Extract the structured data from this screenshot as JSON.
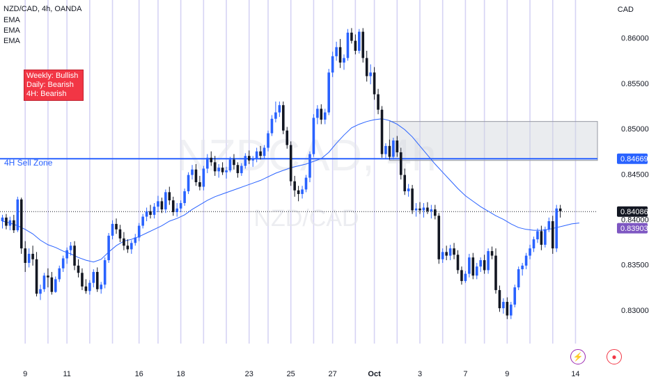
{
  "header": {
    "symbol_line": "NZD/CAD, 4h, OANDA",
    "indicators": [
      "EMA",
      "EMA",
      "EMA"
    ]
  },
  "currency_label": "CAD",
  "bias_box": {
    "lines": [
      "Weekly: Bullish",
      "Daily: Bearish",
      "4H: Bearish"
    ],
    "color": "#f23645"
  },
  "zone_label": "4H Sell Zone",
  "watermark": {
    "main": "NZDCAD, 4h",
    "sub": "NZD/CAD"
  },
  "icons": [
    "flash-icon",
    "tradingview-logo-icon"
  ],
  "colors": {
    "up": "#2962ff",
    "down": "#131722",
    "ema": "#2962ff",
    "zone_fill": "#d1d4dc",
    "session_line": "#c8c4f0"
  },
  "chart_data": {
    "type": "candlestick",
    "symbol": "NZD/CAD",
    "timeframe": "4h",
    "y_axis": {
      "ticks": [
        0.83,
        0.835,
        0.84,
        0.845,
        0.85,
        0.855,
        0.86
      ],
      "tick_labels": [
        "0.83000",
        "0.83500",
        "0.84000",
        "0.84500",
        "0.85000",
        "0.85500",
        "0.86000"
      ],
      "range": [
        0.8263,
        0.8642
      ]
    },
    "x_axis": {
      "labels": [
        {
          "label": "9",
          "idx": 6
        },
        {
          "label": "11",
          "idx": 17
        },
        {
          "label": "16",
          "idx": 36
        },
        {
          "label": "18",
          "idx": 47
        },
        {
          "label": "23",
          "idx": 65
        },
        {
          "label": "25",
          "idx": 76
        },
        {
          "label": "27",
          "idx": 87
        },
        {
          "label": "Oct",
          "idx": 98,
          "bold": true
        },
        {
          "label": "3",
          "idx": 110
        },
        {
          "label": "7",
          "idx": 122
        },
        {
          "label": "9",
          "idx": 133
        },
        {
          "label": "14",
          "idx": 151
        }
      ],
      "session_lines": [
        6,
        12,
        17,
        23,
        29,
        36,
        41,
        47,
        53,
        59,
        65,
        70,
        76,
        82,
        87,
        93,
        98,
        104,
        110,
        116,
        122,
        127,
        133,
        139,
        145,
        151
      ]
    },
    "price_labels": [
      {
        "value": 0.84669,
        "text": "0.84669",
        "color": "#2962ff"
      },
      {
        "value": 0.84086,
        "text": "0.84086",
        "color": "#131722"
      },
      {
        "value": 0.83903,
        "text": "0.83903",
        "color": "#7e57c2"
      }
    ],
    "sell_zone": {
      "top": 0.8508,
      "bottom": 0.8465,
      "from_idx": 102
    },
    "zone_line": 0.84669,
    "current_price": 0.84086,
    "candles": [
      [
        0.8398,
        0.8405,
        0.839,
        0.8402
      ],
      [
        0.8402,
        0.8406,
        0.8389,
        0.8393
      ],
      [
        0.8393,
        0.8403,
        0.8388,
        0.8399
      ],
      [
        0.8399,
        0.8405,
        0.8385,
        0.8388
      ],
      [
        0.8388,
        0.8425,
        0.8386,
        0.8422
      ],
      [
        0.8422,
        0.8424,
        0.8362,
        0.8368
      ],
      [
        0.8368,
        0.8376,
        0.8342,
        0.8352
      ],
      [
        0.8352,
        0.8368,
        0.8347,
        0.8362
      ],
      [
        0.8362,
        0.8371,
        0.8349,
        0.8356
      ],
      [
        0.8356,
        0.8364,
        0.8315,
        0.8318
      ],
      [
        0.8318,
        0.8328,
        0.8311,
        0.8323
      ],
      [
        0.8323,
        0.8341,
        0.832,
        0.8338
      ],
      [
        0.8338,
        0.8346,
        0.8325,
        0.8336
      ],
      [
        0.8336,
        0.8342,
        0.8317,
        0.832
      ],
      [
        0.832,
        0.8337,
        0.8319,
        0.8334
      ],
      [
        0.8334,
        0.8349,
        0.8331,
        0.8346
      ],
      [
        0.8346,
        0.836,
        0.8342,
        0.8357
      ],
      [
        0.8357,
        0.8369,
        0.8351,
        0.8366
      ],
      [
        0.8366,
        0.8375,
        0.836,
        0.8371
      ],
      [
        0.8371,
        0.8376,
        0.8344,
        0.8349
      ],
      [
        0.8349,
        0.8356,
        0.8336,
        0.8341
      ],
      [
        0.8341,
        0.8346,
        0.8322,
        0.8326
      ],
      [
        0.8326,
        0.8334,
        0.8318,
        0.8321
      ],
      [
        0.8321,
        0.8333,
        0.8317,
        0.833
      ],
      [
        0.833,
        0.8345,
        0.8325,
        0.8342
      ],
      [
        0.8342,
        0.8347,
        0.832,
        0.8323
      ],
      [
        0.8323,
        0.8331,
        0.8318,
        0.8328
      ],
      [
        0.8328,
        0.8358,
        0.8324,
        0.8355
      ],
      [
        0.8355,
        0.8385,
        0.8352,
        0.8382
      ],
      [
        0.8382,
        0.8399,
        0.8378,
        0.8395
      ],
      [
        0.8395,
        0.8401,
        0.8384,
        0.8389
      ],
      [
        0.8389,
        0.8394,
        0.8375,
        0.8379
      ],
      [
        0.8379,
        0.8386,
        0.8366,
        0.8371
      ],
      [
        0.8371,
        0.8378,
        0.8363,
        0.8367
      ],
      [
        0.8367,
        0.8377,
        0.8362,
        0.8374
      ],
      [
        0.8374,
        0.8384,
        0.8371,
        0.838
      ],
      [
        0.838,
        0.8396,
        0.8376,
        0.8393
      ],
      [
        0.8393,
        0.8406,
        0.839,
        0.8403
      ],
      [
        0.8403,
        0.8413,
        0.8398,
        0.8409
      ],
      [
        0.8409,
        0.8416,
        0.8401,
        0.8405
      ],
      [
        0.8405,
        0.8418,
        0.8401,
        0.8414
      ],
      [
        0.8414,
        0.8426,
        0.8408,
        0.842
      ],
      [
        0.842,
        0.8424,
        0.8407,
        0.8411
      ],
      [
        0.8411,
        0.8433,
        0.8407,
        0.843
      ],
      [
        0.843,
        0.8436,
        0.8416,
        0.8421
      ],
      [
        0.8421,
        0.8425,
        0.8404,
        0.8408
      ],
      [
        0.8408,
        0.8418,
        0.8403,
        0.8412
      ],
      [
        0.8412,
        0.8421,
        0.8408,
        0.8418
      ],
      [
        0.8418,
        0.8434,
        0.8415,
        0.8431
      ],
      [
        0.8431,
        0.8452,
        0.8428,
        0.8449
      ],
      [
        0.8449,
        0.846,
        0.8444,
        0.8455
      ],
      [
        0.8455,
        0.8461,
        0.8437,
        0.8441
      ],
      [
        0.8441,
        0.8448,
        0.8432,
        0.8436
      ],
      [
        0.8436,
        0.8459,
        0.8432,
        0.8456
      ],
      [
        0.8456,
        0.8472,
        0.8451,
        0.8468
      ],
      [
        0.8468,
        0.8475,
        0.8459,
        0.8463
      ],
      [
        0.8463,
        0.847,
        0.8448,
        0.8453
      ],
      [
        0.8453,
        0.8461,
        0.8446,
        0.8457
      ],
      [
        0.8457,
        0.8463,
        0.8449,
        0.8452
      ],
      [
        0.8452,
        0.8458,
        0.8445,
        0.8454
      ],
      [
        0.8454,
        0.8469,
        0.8452,
        0.8466
      ],
      [
        0.8466,
        0.8472,
        0.8455,
        0.846
      ],
      [
        0.846,
        0.8463,
        0.8446,
        0.8451
      ],
      [
        0.8451,
        0.8462,
        0.8448,
        0.8459
      ],
      [
        0.8459,
        0.8473,
        0.8456,
        0.847
      ],
      [
        0.847,
        0.8476,
        0.8461,
        0.8465
      ],
      [
        0.8465,
        0.847,
        0.8458,
        0.8467
      ],
      [
        0.8467,
        0.8479,
        0.8463,
        0.8475
      ],
      [
        0.8475,
        0.8481,
        0.8466,
        0.847
      ],
      [
        0.847,
        0.8482,
        0.8467,
        0.8479
      ],
      [
        0.8479,
        0.8498,
        0.8475,
        0.8495
      ],
      [
        0.8495,
        0.8515,
        0.8492,
        0.8511
      ],
      [
        0.8511,
        0.853,
        0.8507,
        0.8518
      ],
      [
        0.8518,
        0.853,
        0.8513,
        0.8526
      ],
      [
        0.8526,
        0.853,
        0.8494,
        0.8498
      ],
      [
        0.8498,
        0.8502,
        0.8478,
        0.8482
      ],
      [
        0.8482,
        0.8486,
        0.8437,
        0.8442
      ],
      [
        0.8442,
        0.8448,
        0.8425,
        0.8432
      ],
      [
        0.8432,
        0.8437,
        0.842,
        0.8428
      ],
      [
        0.8428,
        0.8437,
        0.8423,
        0.8433
      ],
      [
        0.8433,
        0.8449,
        0.843,
        0.8446
      ],
      [
        0.8446,
        0.8475,
        0.8441,
        0.8472
      ],
      [
        0.8472,
        0.8516,
        0.8469,
        0.8512
      ],
      [
        0.8512,
        0.8526,
        0.8505,
        0.8522
      ],
      [
        0.8522,
        0.8527,
        0.8505,
        0.851
      ],
      [
        0.851,
        0.8522,
        0.8505,
        0.8518
      ],
      [
        0.8518,
        0.8566,
        0.8515,
        0.8562
      ],
      [
        0.8562,
        0.8585,
        0.8557,
        0.858
      ],
      [
        0.858,
        0.8596,
        0.8575,
        0.859
      ],
      [
        0.859,
        0.8599,
        0.8567,
        0.8573
      ],
      [
        0.8573,
        0.8582,
        0.8565,
        0.8578
      ],
      [
        0.8578,
        0.861,
        0.8575,
        0.8606
      ],
      [
        0.8606,
        0.8611,
        0.8594,
        0.8597
      ],
      [
        0.8597,
        0.8604,
        0.8582,
        0.8586
      ],
      [
        0.8586,
        0.861,
        0.8583,
        0.8607
      ],
      [
        0.8607,
        0.8611,
        0.8573,
        0.8578
      ],
      [
        0.8578,
        0.8586,
        0.8552,
        0.8558
      ],
      [
        0.8558,
        0.8571,
        0.8549,
        0.8562
      ],
      [
        0.8562,
        0.8568,
        0.8532,
        0.8538
      ],
      [
        0.8538,
        0.8544,
        0.8516,
        0.8521
      ],
      [
        0.8521,
        0.8525,
        0.8468,
        0.8472
      ],
      [
        0.8472,
        0.8484,
        0.8467,
        0.8481
      ],
      [
        0.8481,
        0.8488,
        0.8466,
        0.8469
      ],
      [
        0.8469,
        0.849,
        0.8466,
        0.8487
      ],
      [
        0.8487,
        0.8492,
        0.8469,
        0.8474
      ],
      [
        0.8474,
        0.8479,
        0.8444,
        0.8449
      ],
      [
        0.8449,
        0.8456,
        0.8427,
        0.8431
      ],
      [
        0.8431,
        0.8439,
        0.8425,
        0.8434
      ],
      [
        0.8434,
        0.8438,
        0.8406,
        0.841
      ],
      [
        0.841,
        0.8418,
        0.8403,
        0.8412
      ],
      [
        0.8412,
        0.8419,
        0.8406,
        0.841
      ],
      [
        0.841,
        0.8418,
        0.8402,
        0.8413
      ],
      [
        0.8413,
        0.8419,
        0.8406,
        0.8409
      ],
      [
        0.8409,
        0.8416,
        0.8401,
        0.8411
      ],
      [
        0.8411,
        0.8416,
        0.84,
        0.8404
      ],
      [
        0.8404,
        0.8407,
        0.8351,
        0.8356
      ],
      [
        0.8356,
        0.8368,
        0.8352,
        0.8364
      ],
      [
        0.8364,
        0.8371,
        0.8355,
        0.836
      ],
      [
        0.836,
        0.8372,
        0.8355,
        0.8368
      ],
      [
        0.8368,
        0.8374,
        0.8356,
        0.8361
      ],
      [
        0.8361,
        0.8366,
        0.834,
        0.8344
      ],
      [
        0.8344,
        0.8348,
        0.8328,
        0.8332
      ],
      [
        0.8332,
        0.8343,
        0.833,
        0.834
      ],
      [
        0.834,
        0.8362,
        0.8336,
        0.8358
      ],
      [
        0.8358,
        0.8363,
        0.8334,
        0.8338
      ],
      [
        0.8338,
        0.8352,
        0.8334,
        0.8348
      ],
      [
        0.8348,
        0.8358,
        0.8342,
        0.8355
      ],
      [
        0.8355,
        0.8361,
        0.834,
        0.8344
      ],
      [
        0.8344,
        0.8368,
        0.834,
        0.8365
      ],
      [
        0.8365,
        0.837,
        0.8356,
        0.836
      ],
      [
        0.836,
        0.8368,
        0.8318,
        0.8322
      ],
      [
        0.8322,
        0.8327,
        0.8298,
        0.8302
      ],
      [
        0.8302,
        0.8313,
        0.8296,
        0.8309
      ],
      [
        0.8309,
        0.8314,
        0.829,
        0.8294
      ],
      [
        0.8294,
        0.8309,
        0.829,
        0.8306
      ],
      [
        0.8306,
        0.8328,
        0.8303,
        0.8325
      ],
      [
        0.8325,
        0.8348,
        0.8322,
        0.8345
      ],
      [
        0.8345,
        0.8352,
        0.8338,
        0.8349
      ],
      [
        0.8349,
        0.8363,
        0.8345,
        0.836
      ],
      [
        0.836,
        0.8372,
        0.8356,
        0.8368
      ],
      [
        0.8368,
        0.8381,
        0.8364,
        0.8378
      ],
      [
        0.8378,
        0.839,
        0.8374,
        0.8387
      ],
      [
        0.8387,
        0.8393,
        0.8366,
        0.8372
      ],
      [
        0.8372,
        0.8392,
        0.8369,
        0.8389
      ],
      [
        0.8389,
        0.8402,
        0.8386,
        0.8398
      ],
      [
        0.8398,
        0.8404,
        0.8362,
        0.8368
      ],
      [
        0.8368,
        0.8416,
        0.8364,
        0.8412
      ],
      [
        0.8412,
        0.8416,
        0.8402,
        0.8409
      ]
    ],
    "ema": [
      [
        0,
        0.8398
      ],
      [
        2,
        0.8396
      ],
      [
        4,
        0.8393
      ],
      [
        6,
        0.8389
      ],
      [
        8,
        0.8384
      ],
      [
        10,
        0.8377
      ],
      [
        12,
        0.8372
      ],
      [
        14,
        0.8369
      ],
      [
        16,
        0.8365
      ],
      [
        18,
        0.8362
      ],
      [
        20,
        0.8358
      ],
      [
        22,
        0.8355
      ],
      [
        24,
        0.8353
      ],
      [
        26,
        0.8356
      ],
      [
        28,
        0.8364
      ],
      [
        30,
        0.8371
      ],
      [
        32,
        0.8376
      ],
      [
        34,
        0.8378
      ],
      [
        36,
        0.8381
      ],
      [
        38,
        0.8385
      ],
      [
        40,
        0.8389
      ],
      [
        42,
        0.8393
      ],
      [
        44,
        0.8398
      ],
      [
        46,
        0.8401
      ],
      [
        48,
        0.8405
      ],
      [
        50,
        0.8411
      ],
      [
        52,
        0.8416
      ],
      [
        54,
        0.8421
      ],
      [
        56,
        0.8425
      ],
      [
        58,
        0.8428
      ],
      [
        60,
        0.8431
      ],
      [
        62,
        0.8434
      ],
      [
        64,
        0.8437
      ],
      [
        66,
        0.844
      ],
      [
        68,
        0.8443
      ],
      [
        70,
        0.8447
      ],
      [
        72,
        0.8451
      ],
      [
        74,
        0.8454
      ],
      [
        76,
        0.8457
      ],
      [
        78,
        0.8459
      ],
      [
        80,
        0.8461
      ],
      [
        82,
        0.8464
      ],
      [
        84,
        0.8467
      ],
      [
        86,
        0.8474
      ],
      [
        88,
        0.8484
      ],
      [
        90,
        0.8493
      ],
      [
        92,
        0.8501
      ],
      [
        94,
        0.8505
      ],
      [
        96,
        0.8508
      ],
      [
        98,
        0.851
      ],
      [
        100,
        0.8511
      ],
      [
        102,
        0.8509
      ],
      [
        104,
        0.8505
      ],
      [
        106,
        0.8499
      ],
      [
        108,
        0.8491
      ],
      [
        110,
        0.8481
      ],
      [
        112,
        0.8471
      ],
      [
        114,
        0.8461
      ],
      [
        116,
        0.8452
      ],
      [
        118,
        0.8443
      ],
      [
        120,
        0.8434
      ],
      [
        122,
        0.8426
      ],
      [
        124,
        0.842
      ],
      [
        126,
        0.8414
      ],
      [
        128,
        0.8409
      ],
      [
        130,
        0.8404
      ],
      [
        132,
        0.84
      ],
      [
        134,
        0.8395
      ],
      [
        136,
        0.8391
      ],
      [
        138,
        0.8389
      ],
      [
        140,
        0.8388
      ],
      [
        142,
        0.8388
      ],
      [
        144,
        0.8389
      ],
      [
        146,
        0.8391
      ],
      [
        148,
        0.8393
      ],
      [
        150,
        0.8395
      ],
      [
        152,
        0.8396
      ]
    ]
  }
}
